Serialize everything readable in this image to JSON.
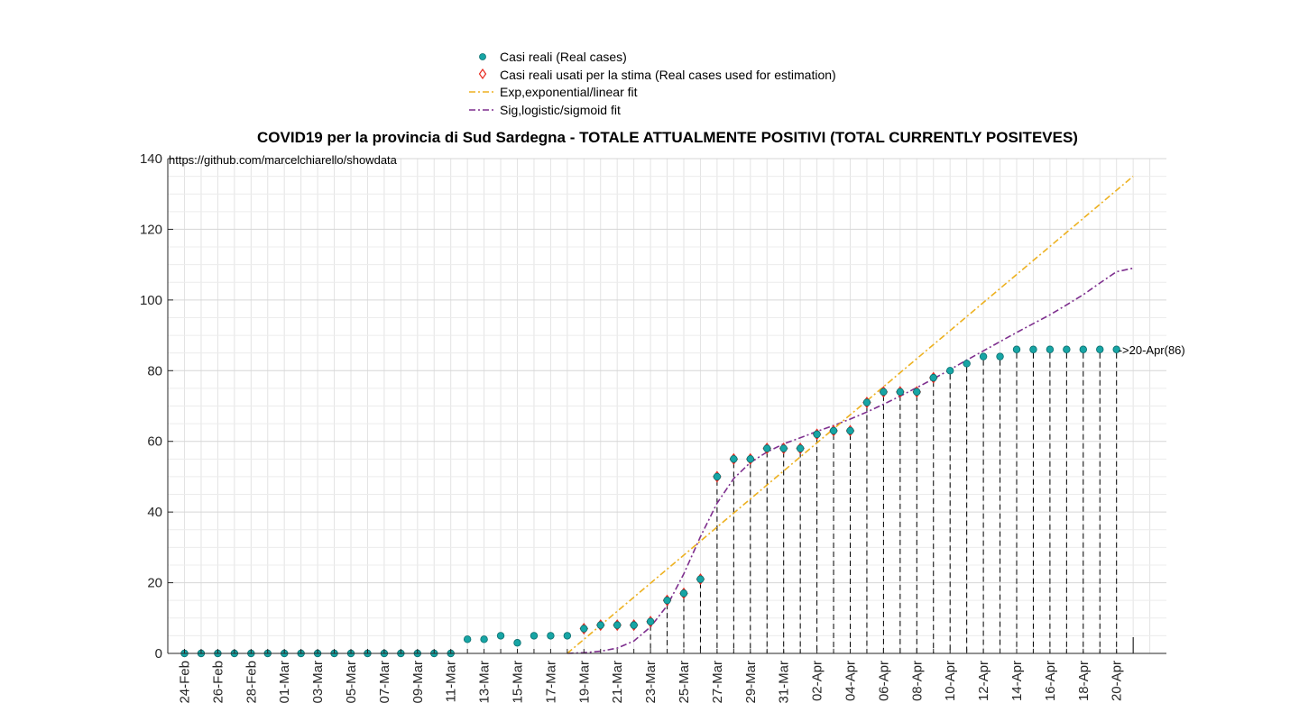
{
  "chart_data": {
    "type": "scatter",
    "title": "COVID19 per la provincia di Sud Sardegna - TOTALE ATTUALMENTE POSITIVI (TOTAL CURRENTLY POSITEVES)",
    "source_note": "https://github.com/marcelchiarello/showdata",
    "xlabel": "",
    "ylabel": "",
    "ylim": [
      0,
      140
    ],
    "yticks": [
      0,
      20,
      40,
      60,
      80,
      100,
      120,
      140
    ],
    "grid": true,
    "legend_position": "top-center",
    "dates": [
      "24-Feb",
      "25-Feb",
      "26-Feb",
      "27-Feb",
      "28-Feb",
      "29-Feb",
      "01-Mar",
      "02-Mar",
      "03-Mar",
      "04-Mar",
      "05-Mar",
      "06-Mar",
      "07-Mar",
      "08-Mar",
      "09-Mar",
      "10-Mar",
      "11-Mar",
      "12-Mar",
      "13-Mar",
      "14-Mar",
      "15-Mar",
      "16-Mar",
      "17-Mar",
      "18-Mar",
      "19-Mar",
      "20-Mar",
      "21-Mar",
      "22-Mar",
      "23-Mar",
      "24-Mar",
      "25-Mar",
      "26-Mar",
      "27-Mar",
      "28-Mar",
      "29-Mar",
      "30-Mar",
      "31-Mar",
      "01-Apr",
      "02-Apr",
      "03-Apr",
      "04-Apr",
      "05-Apr",
      "06-Apr",
      "07-Apr",
      "08-Apr",
      "09-Apr",
      "10-Apr",
      "11-Apr",
      "12-Apr",
      "13-Apr",
      "14-Apr",
      "15-Apr",
      "16-Apr",
      "17-Apr",
      "18-Apr",
      "19-Apr",
      "20-Apr"
    ],
    "xtick_labels": [
      "24-Feb",
      "26-Feb",
      "28-Feb",
      "01-Mar",
      "03-Mar",
      "05-Mar",
      "07-Mar",
      "09-Mar",
      "11-Mar",
      "13-Mar",
      "15-Mar",
      "17-Mar",
      "19-Mar",
      "21-Mar",
      "23-Mar",
      "25-Mar",
      "27-Mar",
      "29-Mar",
      "31-Mar",
      "02-Apr",
      "04-Apr",
      "06-Apr",
      "08-Apr",
      "10-Apr",
      "12-Apr",
      "14-Apr",
      "16-Apr",
      "18-Apr",
      "20-Apr"
    ],
    "series": [
      {
        "name": "Casi reali (Real cases)",
        "marker": "circle",
        "color": "#17a5a5",
        "values": [
          0,
          0,
          0,
          0,
          0,
          0,
          0,
          0,
          0,
          0,
          0,
          0,
          0,
          0,
          0,
          0,
          0,
          4,
          4,
          5,
          3,
          5,
          5,
          5,
          7,
          8,
          8,
          8,
          9,
          15,
          17,
          21,
          50,
          55,
          55,
          58,
          58,
          58,
          62,
          63,
          63,
          71,
          74,
          74,
          74,
          78,
          80,
          82,
          84,
          84,
          86,
          86,
          86,
          86,
          86,
          86,
          86
        ]
      },
      {
        "name": "Casi reali usati per la stima (Real cases used for estimation)",
        "marker": "diamond",
        "color": "#e8281e",
        "start_date": "19-Mar",
        "end_date": "09-Apr"
      },
      {
        "name": "Exp,exponential/linear fit",
        "line": "dash-dot",
        "color": "#edb120",
        "points": [
          [
            "18-Mar",
            0
          ],
          [
            "21-Apr",
            135
          ]
        ]
      },
      {
        "name": "Sig,logistic/sigmoid fit",
        "line": "dash-dot",
        "color": "#7e2f8e",
        "points": [
          [
            "18-Mar",
            0
          ],
          [
            "19-Mar",
            0.2
          ],
          [
            "20-Mar",
            0.6
          ],
          [
            "21-Mar",
            1.5
          ],
          [
            "22-Mar",
            3.5
          ],
          [
            "23-Mar",
            7.5
          ],
          [
            "24-Mar",
            13.5
          ],
          [
            "25-Mar",
            22.5
          ],
          [
            "26-Mar",
            33
          ],
          [
            "27-Mar",
            42.5
          ],
          [
            "28-Mar",
            49.5
          ],
          [
            "29-Mar",
            54
          ],
          [
            "30-Mar",
            57
          ],
          [
            "31-Mar",
            59.3
          ],
          [
            "01-Apr",
            61
          ],
          [
            "02-Apr",
            62.8
          ],
          [
            "03-Apr",
            64.5
          ],
          [
            "04-Apr",
            66.3
          ],
          [
            "05-Apr",
            68.3
          ],
          [
            "06-Apr",
            70.5
          ],
          [
            "07-Apr",
            72.8
          ],
          [
            "08-Apr",
            75.2
          ],
          [
            "09-Apr",
            77.7
          ],
          [
            "10-Apr",
            80.3
          ],
          [
            "11-Apr",
            83
          ],
          [
            "12-Apr",
            85.6
          ],
          [
            "13-Apr",
            88.2
          ],
          [
            "14-Apr",
            90.8
          ],
          [
            "15-Apr",
            93.3
          ],
          [
            "16-Apr",
            95.8
          ],
          [
            "17-Apr",
            98.6
          ],
          [
            "18-Apr",
            101.5
          ],
          [
            "19-Apr",
            104.8
          ],
          [
            "20-Apr",
            108
          ],
          [
            "21-Apr",
            109
          ]
        ]
      }
    ],
    "annotations": [
      {
        "text": "->20-Apr(86)",
        "date": "20-Apr",
        "y": 86
      }
    ]
  }
}
